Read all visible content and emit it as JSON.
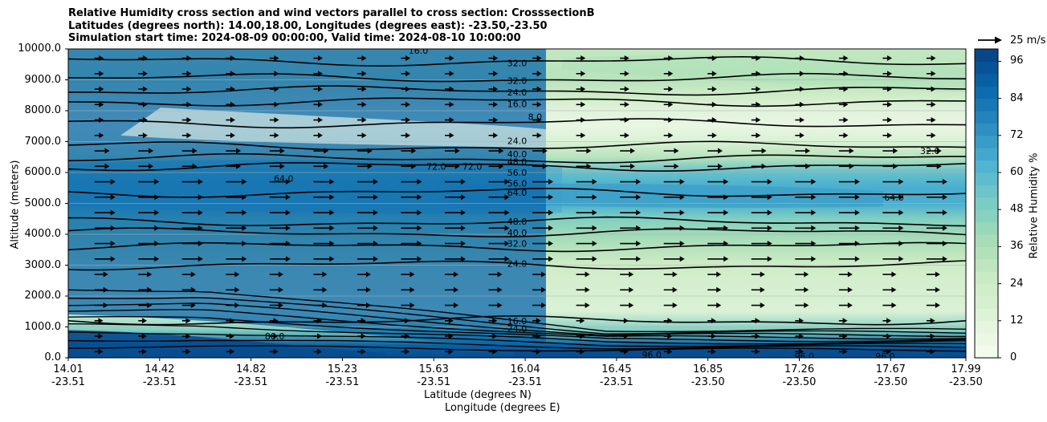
{
  "chart_data": {
    "type": "heatmap",
    "title_lines": [
      "Relative Humidity cross section and wind vectors parallel to cross section: CrosssectionB",
      "Latitudes (degrees north): 14.00,18.00, Longitudes (degrees east): -23.50,-23.50",
      "Simulation start time: 2024-08-09 00:00:00, Valid time: 2024-08-10 10:00:00"
    ],
    "ylabel": "Altitude (meters)",
    "xlabel_lat": "Latitude (degrees N)",
    "xlabel_lon": "Longitude (degrees E)",
    "ylim": [
      0,
      10000
    ],
    "y_ticks": [
      "0.0",
      "1000.0",
      "2000.0",
      "3000.0",
      "4000.0",
      "5000.0",
      "6000.0",
      "7000.0",
      "8000.0",
      "9000.0",
      "10000.0"
    ],
    "x_ticks": [
      {
        "lat": "14.01",
        "lon": "-23.51"
      },
      {
        "lat": "14.42",
        "lon": "-23.51"
      },
      {
        "lat": "14.82",
        "lon": "-23.51"
      },
      {
        "lat": "15.23",
        "lon": "-23.51"
      },
      {
        "lat": "15.63",
        "lon": "-23.51"
      },
      {
        "lat": "16.04",
        "lon": "-23.51"
      },
      {
        "lat": "16.45",
        "lon": "-23.51"
      },
      {
        "lat": "16.85",
        "lon": "-23.50"
      },
      {
        "lat": "17.26",
        "lon": "-23.50"
      },
      {
        "lat": "17.67",
        "lon": "-23.50"
      },
      {
        "lat": "17.99",
        "lon": "-23.50"
      }
    ],
    "colorbar": {
      "label": "Relative Humidity %",
      "range": [
        0,
        100
      ],
      "ticks": [
        "0",
        "12",
        "24",
        "36",
        "48",
        "60",
        "72",
        "84",
        "96"
      ],
      "levels": 25
    },
    "quiver_key": "25 m/s",
    "rh_profile": [
      {
        "z": 0,
        "rh": 96
      },
      {
        "z": 400,
        "rh": 90
      },
      {
        "z": 900,
        "rh": 48
      },
      {
        "z": 1500,
        "rh": 16
      },
      {
        "z": 2500,
        "rh": 20
      },
      {
        "z": 3000,
        "rh": 24
      },
      {
        "z": 3500,
        "rh": 32
      },
      {
        "z": 4000,
        "rh": 40
      },
      {
        "z": 4500,
        "rh": 48
      },
      {
        "z": 5000,
        "rh": 64
      },
      {
        "z": 5500,
        "rh": 64
      },
      {
        "z": 6000,
        "rh": 56
      },
      {
        "z": 6500,
        "rh": 32
      },
      {
        "z": 7000,
        "rh": 16
      },
      {
        "z": 7500,
        "rh": 8
      },
      {
        "z": 8000,
        "rh": 12
      },
      {
        "z": 8500,
        "rh": 24
      },
      {
        "z": 9000,
        "rh": 32
      },
      {
        "z": 10000,
        "rh": 28
      }
    ],
    "contour_lines": [
      {
        "label": "16.0",
        "z": 1200
      },
      {
        "label": "24.0",
        "z": 3000
      },
      {
        "label": "32.0",
        "z": 3600
      },
      {
        "label": "40.0",
        "z": 4050
      },
      {
        "label": "48.0",
        "z": 4400
      },
      {
        "label": "64.0",
        "z": 5350
      },
      {
        "label": "56.0",
        "z": 6200
      },
      {
        "label": "40.0",
        "z": 6450
      },
      {
        "label": "24.0",
        "z": 6850
      },
      {
        "label": "8.0",
        "z": 7600
      },
      {
        "label": "16.0",
        "z": 8300
      },
      {
        "label": "24.0",
        "z": 8650
      },
      {
        "label": "32.0",
        "z": 9050
      },
      {
        "label": "32.0",
        "z": 9600
      }
    ],
    "contour_labels": [
      {
        "text": "16.0",
        "x": 0.39,
        "z": 9950
      },
      {
        "text": "32.0",
        "x": 0.5,
        "z": 9550
      },
      {
        "text": "32.0",
        "x": 0.5,
        "z": 8970
      },
      {
        "text": "24.0",
        "x": 0.5,
        "z": 8600
      },
      {
        "text": "16.0",
        "x": 0.5,
        "z": 8220
      },
      {
        "text": "8.0",
        "x": 0.52,
        "z": 7800
      },
      {
        "text": "24.0",
        "x": 0.5,
        "z": 7030
      },
      {
        "text": "40.0",
        "x": 0.5,
        "z": 6600
      },
      {
        "text": "48.0",
        "x": 0.5,
        "z": 6350
      },
      {
        "text": "56.0",
        "x": 0.5,
        "z": 6000
      },
      {
        "text": "56.0",
        "x": 0.5,
        "z": 5650
      },
      {
        "text": "64.0",
        "x": 0.5,
        "z": 5350
      },
      {
        "text": "48.0",
        "x": 0.5,
        "z": 4420
      },
      {
        "text": "40.0",
        "x": 0.5,
        "z": 4050
      },
      {
        "text": "32.0",
        "x": 0.5,
        "z": 3700
      },
      {
        "text": "24.0",
        "x": 0.5,
        "z": 3050
      },
      {
        "text": "16.0",
        "x": 0.5,
        "z": 1200
      },
      {
        "text": "24.0",
        "x": 0.5,
        "z": 950
      },
      {
        "text": "80.0",
        "x": 0.23,
        "z": 700
      },
      {
        "text": "96.0",
        "x": 0.65,
        "z": 100
      },
      {
        "text": "96.0",
        "x": 0.82,
        "z": 50
      },
      {
        "text": "96.0",
        "x": 0.91,
        "z": 50
      },
      {
        "text": "72.0",
        "x": 0.41,
        "z": 6200
      },
      {
        "text": "72.0",
        "x": 0.45,
        "z": 6200
      },
      {
        "text": "64.0",
        "x": 0.24,
        "z": 5800
      },
      {
        "text": "64.0",
        "x": 0.92,
        "z": 5200
      },
      {
        "text": "32.0",
        "x": 0.96,
        "z": 6700
      }
    ],
    "wind": {
      "direction": "northward (left to right)",
      "max_speed_ms": 15
    }
  }
}
